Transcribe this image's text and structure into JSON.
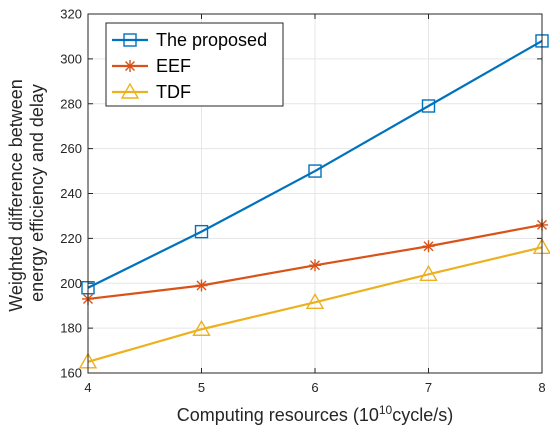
{
  "chart_data": {
    "type": "line",
    "x": [
      4,
      5,
      6,
      7,
      8
    ],
    "series": [
      {
        "name": "The proposed",
        "values": [
          198,
          223,
          250,
          279,
          308
        ],
        "color": "#0072BD",
        "marker": "square"
      },
      {
        "name": "EEF",
        "values": [
          193,
          199,
          208,
          216.5,
          226
        ],
        "color": "#D95319",
        "marker": "asterisk"
      },
      {
        "name": "TDF",
        "values": [
          165,
          179.5,
          191.5,
          204,
          216
        ],
        "color": "#EDB120",
        "marker": "triangle"
      }
    ],
    "xlabel": {
      "prefix": "Computing resources (10",
      "superscript": "10",
      "suffix": "cycle/s)"
    },
    "ylabel_lines": [
      "Weighted difference between",
      "energy efficiency and delay"
    ],
    "xlim": [
      4,
      8
    ],
    "ylim": [
      160,
      320
    ],
    "xticks": [
      4,
      5,
      6,
      7,
      8
    ],
    "yticks": [
      160,
      180,
      200,
      220,
      240,
      260,
      280,
      300,
      320
    ],
    "grid": true,
    "legend_position": "top-left"
  }
}
